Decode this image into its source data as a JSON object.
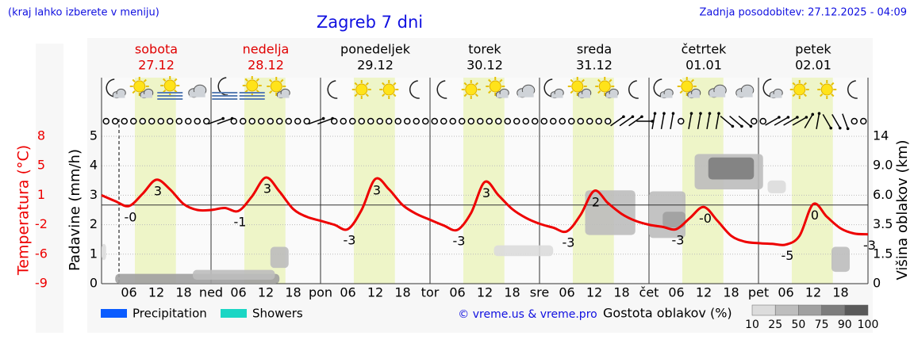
{
  "header": {
    "note": "(kraj lahko izberete v meniju)",
    "title": "Zagreb 7 dni",
    "updated": "Zadnja posodobitev: 27.12.2025 - 04:09"
  },
  "chart_data": {
    "type": "meteogram",
    "days": [
      {
        "name": "sobota",
        "date": "27.12",
        "abbr": null,
        "color": "#e00000"
      },
      {
        "name": "nedelja",
        "date": "28.12",
        "abbr": "ned",
        "color": "#e00000"
      },
      {
        "name": "ponedeljek",
        "date": "29.12",
        "abbr": "pon",
        "color": "#000000"
      },
      {
        "name": "torek",
        "date": "30.12",
        "abbr": "tor",
        "color": "#000000"
      },
      {
        "name": "sreda",
        "date": "31.12",
        "abbr": "sre",
        "color": "#000000"
      },
      {
        "name": "četrtek",
        "date": "01.01",
        "abbr": "čet",
        "color": "#000000"
      },
      {
        "name": "petek",
        "date": "02.01",
        "abbr": "pet",
        "color": "#000000"
      }
    ],
    "hour_labels": [
      "06",
      "12",
      "18"
    ],
    "xlim": [
      0,
      168
    ],
    "daylight_hours": [
      7.3,
      16.3
    ],
    "daylight_color": "#eef5c8",
    "yaxis_label": "Padavine (mm/h)",
    "ylim": [
      0,
      5
    ],
    "yticks": [
      0,
      1,
      2,
      3,
      4,
      5
    ],
    "grid": true,
    "temperature": {
      "label": "Temperatura (°C)",
      "color": "#ee0000",
      "ylim": [
        -9,
        8
      ],
      "yticks": [
        -9,
        -6,
        -2,
        1,
        5,
        8
      ],
      "x": [
        0,
        3,
        6,
        9,
        12,
        15,
        18,
        21,
        24,
        27,
        30,
        33,
        36,
        39,
        42,
        45,
        48,
        51,
        54,
        57,
        60,
        63,
        66,
        69,
        72,
        75,
        78,
        81,
        84,
        87,
        90,
        93,
        96,
        99,
        102,
        105,
        108,
        111,
        114,
        117,
        120,
        123,
        126,
        129,
        132,
        135,
        138,
        141,
        144,
        147,
        150,
        153,
        156,
        159,
        162,
        165,
        168
      ],
      "values": [
        1.0,
        0.4,
        -0.1,
        1.2,
        3.1,
        1.8,
        0.1,
        -0.5,
        -0.5,
        -0.3,
        -0.6,
        0.9,
        3.4,
        1.5,
        -0.4,
        -1.2,
        -1.6,
        -2.0,
        -2.6,
        -0.5,
        3.2,
        1.8,
        0.0,
        -0.9,
        -1.5,
        -2.1,
        -2.7,
        -0.8,
        2.8,
        1.0,
        -0.4,
        -1.3,
        -1.9,
        -2.4,
        -2.9,
        -1.0,
        1.6,
        0.2,
        -0.9,
        -1.6,
        -2.0,
        -2.3,
        -2.6,
        -1.3,
        -0.2,
        -1.6,
        -3.5,
        -4.3,
        -4.5,
        -4.6,
        -4.7,
        -3.5,
        0.1,
        -1.2,
        -2.5,
        -3.2,
        -3.3
      ],
      "value_labels": [
        null,
        null,
        "-0",
        null,
        "3",
        null,
        null,
        null,
        null,
        null,
        "-1",
        null,
        "3",
        null,
        null,
        null,
        null,
        null,
        "-3",
        null,
        "3",
        null,
        null,
        null,
        null,
        null,
        "-3",
        null,
        "3",
        null,
        null,
        null,
        null,
        null,
        "-3",
        null,
        "2",
        null,
        null,
        null,
        null,
        null,
        "-3",
        null,
        "-0",
        null,
        null,
        null,
        null,
        null,
        "-5",
        null,
        "0",
        null,
        null,
        null,
        "-3"
      ]
    },
    "clouds": {
      "label": "Višina oblakov (km)",
      "ylim": [
        0,
        14
      ],
      "yticks": [
        0,
        1.5,
        3.5,
        {
          "value": 6,
          "label": "6.0"
        },
        {
          "value": 9,
          "label": "9.0"
        },
        14
      ],
      "cells": [
        {
          "hours": [
            3,
            39
          ],
          "km": [
            0,
            0.5
          ],
          "density": 75
        },
        {
          "hours": [
            20,
            38
          ],
          "km": [
            0.2,
            0.7
          ],
          "density": 50
        },
        {
          "hours": [
            37,
            41
          ],
          "km": [
            0.8,
            2.0
          ],
          "density": 50
        },
        {
          "hours": [
            0,
            1
          ],
          "km": [
            1.2,
            2.2
          ],
          "density": 25
        },
        {
          "hours": [
            86,
            99
          ],
          "km": [
            1.4,
            2.1
          ],
          "density": 25
        },
        {
          "hours": [
            106,
            117
          ],
          "km": [
            2.8,
            6.5
          ],
          "density": 50
        },
        {
          "hours": [
            120,
            128
          ],
          "km": [
            2.6,
            6.4
          ],
          "density": 50
        },
        {
          "hours": [
            123,
            128
          ],
          "km": [
            3.3,
            4.6
          ],
          "density": 75
        },
        {
          "hours": [
            130,
            145
          ],
          "km": [
            6.6,
            11.0
          ],
          "density": 50
        },
        {
          "hours": [
            133,
            143
          ],
          "km": [
            7.6,
            10.4
          ],
          "density": 90
        },
        {
          "hours": [
            146,
            150
          ],
          "km": [
            6.2,
            7.5
          ],
          "density": 25
        },
        {
          "hours": [
            160,
            164
          ],
          "km": [
            0.6,
            2.0
          ],
          "density": 50
        }
      ]
    },
    "density_legend": {
      "label": "Gostota oblakov (%)",
      "ticks": [
        10,
        25,
        50,
        75,
        90,
        100
      ],
      "colors": [
        "#dcdcdc",
        "#bdbdbd",
        "#a0a0a0",
        "#7d7d7d",
        "#5a5a5a"
      ]
    },
    "legend": [
      {
        "name": "Precipitation",
        "color": "#0a5cff"
      },
      {
        "name": "Showers",
        "color": "#1ad6c4"
      }
    ],
    "weather_icons": [
      "mc",
      "sc",
      "sf",
      "c",
      "mf",
      "sf",
      "sc",
      null,
      "m",
      "s",
      "s",
      "m",
      "m",
      "s",
      "sc",
      "c",
      "mc",
      "sc",
      "sc",
      "m",
      "mc",
      "sc",
      "c",
      "c",
      "mc",
      "s",
      "s",
      "m"
    ],
    "wind": [
      "o",
      "o",
      "o",
      "o",
      "o",
      "o",
      "o",
      "o",
      "o",
      "o",
      "o",
      "o",
      20,
      20,
      "o",
      "o",
      "o",
      "o",
      "o",
      "o",
      "o",
      "o",
      "o",
      20,
      20,
      "o",
      "o",
      "o",
      "o",
      "o",
      "o",
      "o",
      "o",
      "o",
      "o",
      "o",
      "o",
      "o",
      "o",
      "o",
      "o",
      "o",
      "o",
      "o",
      "o",
      "o",
      "o",
      "o",
      "o",
      "o",
      "o",
      "o",
      "o",
      "o",
      "o",
      "o",
      35,
      35,
      35,
      0,
      80,
      80,
      80,
      "o",
      80,
      80,
      80,
      80,
      -40,
      -40,
      -40,
      "o",
      "o",
      30,
      30,
      30,
      30,
      60,
      80,
      -60,
      -60,
      -70,
      "o",
      "o"
    ],
    "credit": "© vreme.us & vreme.pro"
  }
}
